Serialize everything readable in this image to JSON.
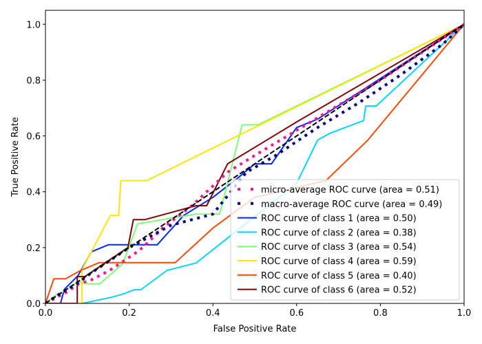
{
  "chart_data": {
    "type": "line",
    "title": "",
    "xlabel": "False Positive Rate",
    "ylabel": "True Positive Rate",
    "xlim": [
      0.0,
      1.0
    ],
    "ylim": [
      0.0,
      1.05
    ],
    "xticks": [
      0.0,
      0.2,
      0.4,
      0.6,
      0.8,
      1.0
    ],
    "yticks": [
      0.0,
      0.2,
      0.4,
      0.6,
      0.8,
      1.0
    ],
    "xtick_labels": [
      "0.0",
      "0.2",
      "0.4",
      "0.6",
      "0.8",
      "1.0"
    ],
    "ytick_labels": [
      "0.0",
      "0.2",
      "0.4",
      "0.6",
      "0.8",
      "1.0"
    ],
    "grid": false,
    "legend_position": "lower-right",
    "series": [
      {
        "name": "micro-average ROC curve (area = 0.51)",
        "color": "#ff1493",
        "style": "dotted",
        "x": [
          0.0,
          0.05,
          0.08,
          0.109,
          0.13,
          0.153,
          0.212,
          0.232,
          0.28,
          0.35,
          0.435,
          0.5,
          0.6,
          0.7,
          0.8,
          0.9,
          1.0
        ],
        "y": [
          0.0,
          0.04,
          0.07,
          0.084,
          0.1,
          0.118,
          0.177,
          0.2,
          0.27,
          0.35,
          0.47,
          0.53,
          0.62,
          0.71,
          0.8,
          0.9,
          1.0
        ]
      },
      {
        "name": "macro-average ROC curve (area = 0.49)",
        "color": "#000080",
        "style": "dotted",
        "x": [
          0.0,
          0.04,
          0.075,
          0.11,
          0.2,
          0.3,
          0.4,
          0.48,
          0.55,
          0.65,
          0.75,
          0.85,
          0.95,
          1.0
        ],
        "y": [
          0.0,
          0.04,
          0.07,
          0.11,
          0.2,
          0.28,
          0.32,
          0.47,
          0.53,
          0.63,
          0.72,
          0.82,
          0.93,
          1.0
        ]
      },
      {
        "name": "ROC curve of class 1 (area = 0.50)",
        "color": "#0028ff",
        "style": "solid",
        "x": [
          0.0,
          0.036,
          0.045,
          0.078,
          0.11,
          0.15,
          0.215,
          0.267,
          0.33,
          0.4,
          0.46,
          0.5,
          0.54,
          0.6,
          0.65,
          1.0
        ],
        "y": [
          0.0,
          0.0,
          0.05,
          0.1,
          0.185,
          0.21,
          0.21,
          0.21,
          0.315,
          0.38,
          0.45,
          0.5,
          0.5,
          0.63,
          0.66,
          1.0
        ]
      },
      {
        "name": "ROC curve of class 2 (area = 0.38)",
        "color": "#00d4ff",
        "style": "solid",
        "x": [
          0.0,
          0.088,
          0.158,
          0.188,
          0.212,
          0.228,
          0.29,
          0.36,
          0.6,
          0.65,
          0.68,
          0.76,
          0.765,
          0.79,
          1.0
        ],
        "y": [
          0.0,
          0.0,
          0.022,
          0.035,
          0.049,
          0.049,
          0.118,
          0.145,
          0.43,
          0.585,
          0.61,
          0.655,
          0.707,
          0.707,
          1.0
        ]
      },
      {
        "name": "ROC curve of class 3 (area = 0.54)",
        "color": "#7dff7a",
        "style": "solid",
        "x": [
          0.0,
          0.023,
          0.04,
          0.078,
          0.105,
          0.13,
          0.185,
          0.22,
          0.36,
          0.416,
          0.47,
          0.508,
          1.0
        ],
        "y": [
          0.0,
          0.028,
          0.04,
          0.076,
          0.07,
          0.07,
          0.143,
          0.285,
          0.32,
          0.32,
          0.64,
          0.64,
          1.0
        ]
      },
      {
        "name": "ROC curve of class 4 (area = 0.59)",
        "color": "#ffe500",
        "style": "solid",
        "x": [
          0.0,
          0.087,
          0.087,
          0.155,
          0.175,
          0.18,
          0.242,
          1.0
        ],
        "y": [
          0.0,
          0.0,
          0.12,
          0.315,
          0.315,
          0.44,
          0.44,
          1.0
        ]
      },
      {
        "name": "ROC curve of class 5 (area = 0.40)",
        "color": "#ff4800",
        "style": "solid",
        "x": [
          0.0,
          0.02,
          0.048,
          0.084,
          0.128,
          0.31,
          0.4,
          0.5,
          0.67,
          0.77,
          1.0
        ],
        "y": [
          0.0,
          0.088,
          0.088,
          0.118,
          0.146,
          0.146,
          0.27,
          0.38,
          0.44,
          0.585,
          1.0
        ]
      },
      {
        "name": "ROC curve of class 6 (area = 0.52)",
        "color": "#7f0000",
        "style": "solid",
        "x": [
          0.0,
          0.076,
          0.076,
          0.094,
          0.197,
          0.21,
          0.237,
          0.36,
          0.385,
          0.435,
          0.6,
          1.0
        ],
        "y": [
          0.0,
          0.0,
          0.096,
          0.096,
          0.2,
          0.3,
          0.3,
          0.35,
          0.35,
          0.5,
          0.65,
          1.0
        ]
      }
    ],
    "reference_line": {
      "name": "chance diagonal",
      "color": "#000000",
      "style": "dashed",
      "x": [
        0.0,
        1.0
      ],
      "y": [
        0.0,
        1.0
      ]
    }
  }
}
